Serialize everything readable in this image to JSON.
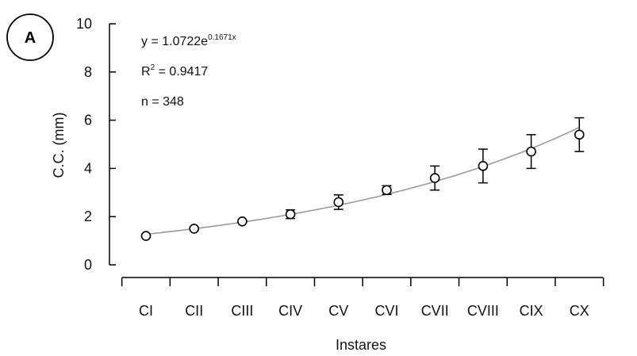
{
  "panel_label": "A",
  "annotations": {
    "equation_prefix": "y = 1.0722e",
    "equation_exponent": "0.1671x",
    "r2_label": "R",
    "r2_sup": "2",
    "r2_value": " = 0.9417",
    "n_text": "n = 348"
  },
  "chart_data": {
    "type": "scatter",
    "xlabel": "Instares",
    "ylabel": "C.C. (mm)",
    "categories": [
      "CI",
      "CII",
      "CIII",
      "CIV",
      "CV",
      "CVI",
      "CVII",
      "CVIII",
      "CIX",
      "CX"
    ],
    "values": [
      1.2,
      1.5,
      1.8,
      2.1,
      2.6,
      3.1,
      3.6,
      4.1,
      4.7,
      5.4
    ],
    "error": [
      0.05,
      0.05,
      0.05,
      0.18,
      0.3,
      0.18,
      0.5,
      0.7,
      0.7,
      0.7
    ],
    "ylim": [
      0,
      10
    ],
    "yticks": [
      0,
      2,
      4,
      6,
      8,
      10
    ],
    "fit": {
      "model": "exponential",
      "a": 1.0722,
      "b": 0.1671
    },
    "grid": false,
    "legend": "none"
  }
}
